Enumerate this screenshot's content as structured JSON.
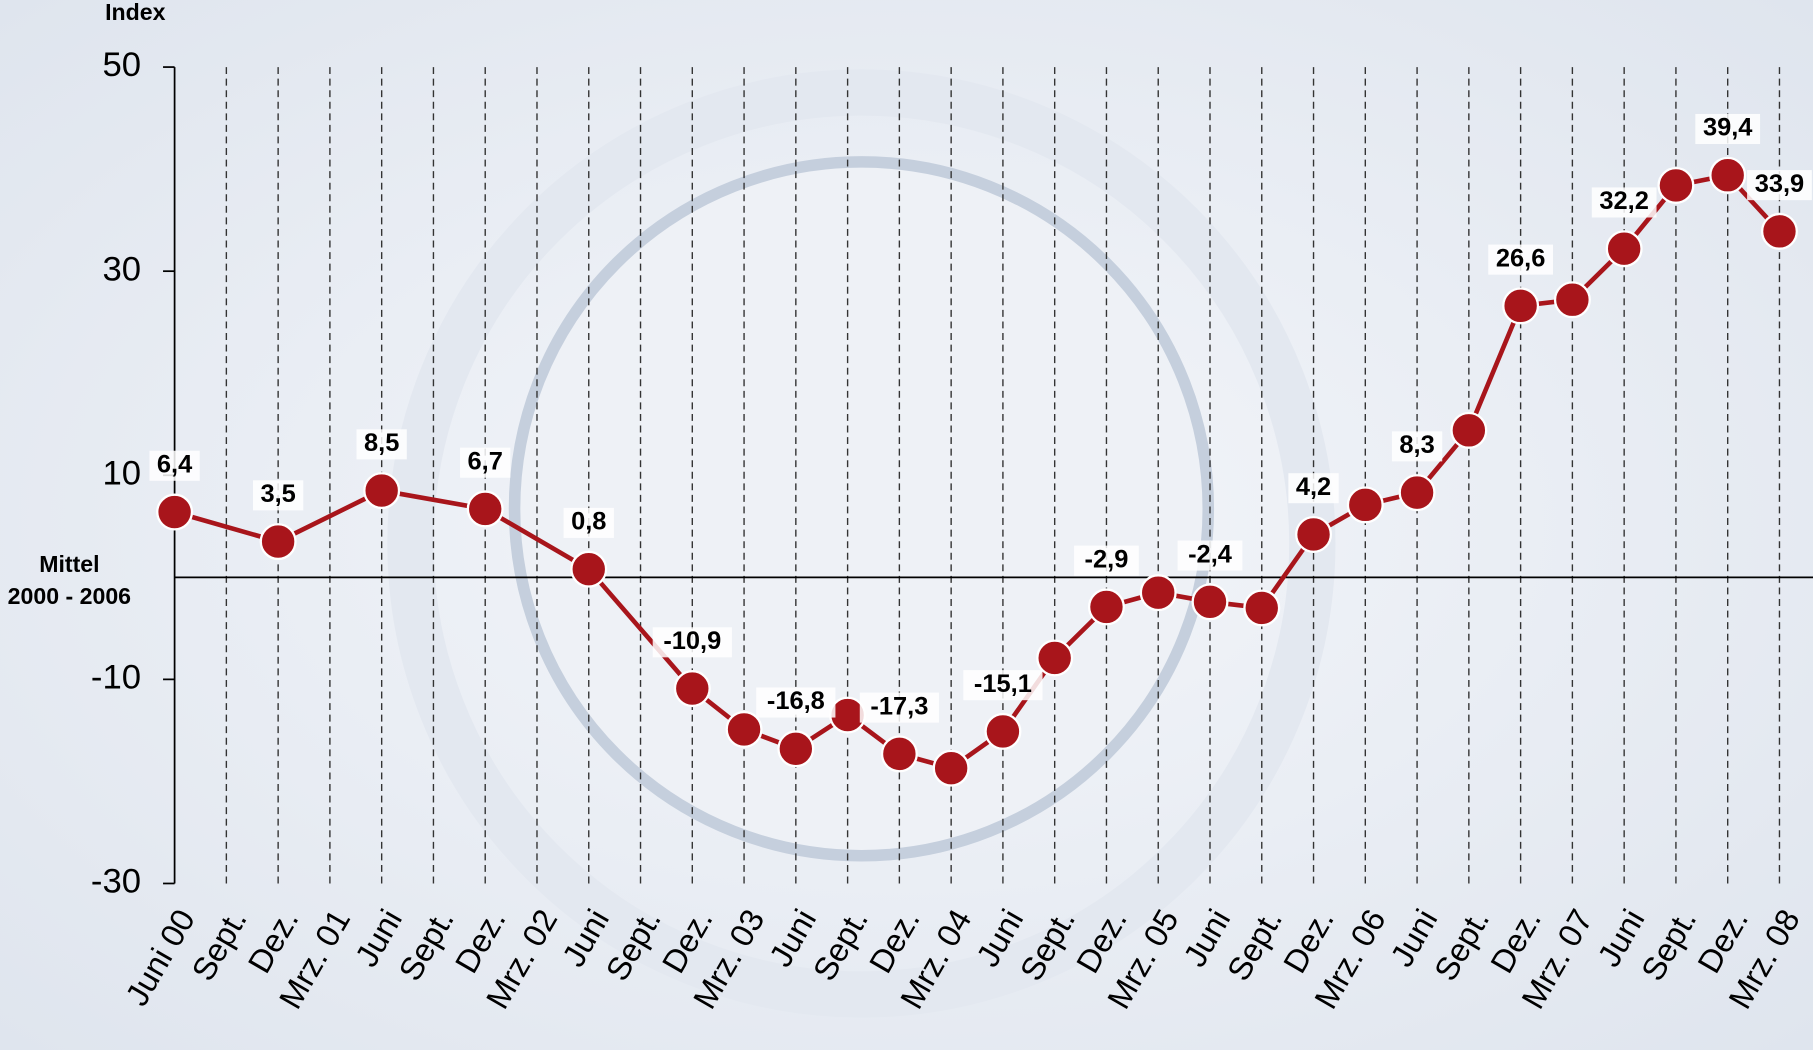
{
  "chart_data": {
    "type": "line",
    "y_axis_label": "Index",
    "categories": [
      "Juni 00",
      "Sept.",
      "Dez.",
      "Mrz. 01",
      "Juni",
      "Sept.",
      "Dez.",
      "Mrz. 02",
      "Juni",
      "Sept.",
      "Dez.",
      "Mrz. 03",
      "Juni",
      "Sept.",
      "Dez.",
      "Mrz. 04",
      "Juni",
      "Sept.",
      "Dez.",
      "Mrz. 05",
      "Juni",
      "Sept.",
      "Dez.",
      "Mrz. 06",
      "Juni",
      "Sept.",
      "Dez.",
      "Mrz. 07",
      "Juni",
      "Sept.",
      "Dez.",
      "Mrz. 08"
    ],
    "series": [
      {
        "color": "#a8151b",
        "values": [
          6.4,
          null,
          3.5,
          null,
          8.5,
          null,
          6.7,
          null,
          0.8,
          null,
          -10.9,
          -14.9,
          -16.8,
          -13.5,
          -17.3,
          -18.7,
          -15.1,
          -7.9,
          -2.9,
          -1.5,
          -2.4,
          -3.0,
          4.2,
          7.1,
          8.3,
          14.4,
          26.6,
          27.2,
          32.2,
          38.4,
          39.4,
          33.9
        ],
        "value_labels": [
          "6,4",
          null,
          "3,5",
          null,
          "8,5",
          null,
          "6,7",
          null,
          "0,8",
          null,
          "-10,9",
          null,
          "-16,8",
          null,
          "-17,3",
          null,
          "-15,1",
          null,
          "-2,9",
          null,
          "-2,4",
          null,
          "4,2",
          null,
          "8,3",
          null,
          "26,6",
          null,
          "32,2",
          null,
          "39,4",
          "33,9"
        ]
      }
    ],
    "connect_gaps": true,
    "ylim": [
      -30,
      50
    ],
    "yticks": [
      -30,
      -10,
      10,
      30,
      50
    ],
    "x_grid": true,
    "reference_line": {
      "value": 0,
      "label": [
        "Mittel",
        "2000 - 2006"
      ]
    }
  }
}
